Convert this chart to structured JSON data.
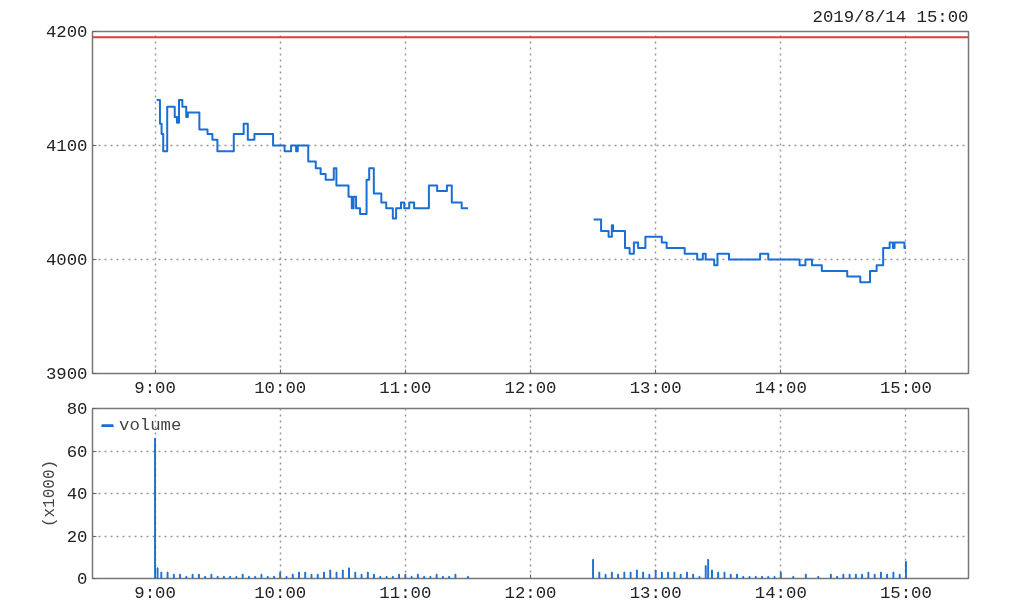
{
  "chart_data": [
    {
      "type": "step",
      "title": "2019/8/14 15:00",
      "xlim": [
        8.5,
        15.5
      ],
      "xticks": [
        {
          "value": 9,
          "label": "9:00"
        },
        {
          "value": 10,
          "label": "10:00"
        },
        {
          "value": 11,
          "label": "11:00"
        },
        {
          "value": 12,
          "label": "12:00"
        },
        {
          "value": 13,
          "label": "13:00"
        },
        {
          "value": 14,
          "label": "14:00"
        },
        {
          "value": 15,
          "label": "15:00"
        }
      ],
      "ylim": [
        3900,
        4200
      ],
      "yticks": [
        3900,
        4000,
        4100,
        4200
      ],
      "grid": true,
      "legend": false,
      "ref_lines": [
        {
          "axis": "y",
          "value": 4195,
          "color": "#e03c3c"
        }
      ],
      "series": [
        {
          "color": "#1a6fd4",
          "x": [
            9.013,
            9.039,
            9.052,
            9.065,
            9.097,
            9.157,
            9.175,
            9.191,
            9.218,
            9.249,
            9.262,
            9.354,
            9.419,
            9.458,
            9.498,
            9.629,
            9.708,
            9.741,
            9.794,
            9.943,
            10.035,
            10.087,
            10.127,
            10.14,
            10.224,
            10.284,
            10.323,
            10.363,
            10.428,
            10.449,
            10.546,
            10.572,
            10.586,
            10.606,
            10.638,
            10.69,
            10.711,
            10.748,
            10.808,
            10.847,
            10.9,
            10.926,
            10.965,
            10.991,
            11.031,
            11.07,
            11.188,
            11.254,
            11.332,
            11.371,
            11.45,
            11.501,
            12.0,
            12.504,
            12.564,
            12.624,
            12.65,
            12.66,
            12.755,
            12.792,
            12.826,
            12.86,
            12.918,
            13.049,
            13.088,
            13.232,
            13.332,
            13.377,
            13.4,
            13.468,
            13.494,
            13.586,
            13.835,
            13.9,
            14.15,
            14.197,
            14.249,
            14.328,
            14.531,
            14.635,
            14.713,
            14.766,
            14.818,
            14.87,
            14.896,
            14.909,
            14.988,
            15.0
          ],
          "values": [
            4140,
            4119,
            4110,
            4095,
            4134,
            4125,
            4120,
            4140,
            4134,
            4125,
            4129,
            4114,
            4110,
            4105,
            4095,
            4110,
            4119,
            4105,
            4110,
            4100,
            4095,
            4100,
            4095,
            4100,
            4086,
            4080,
            4075,
            4070,
            4080,
            4065,
            4055,
            4045,
            4055,
            4045,
            4040,
            4070,
            4080,
            4058,
            4050,
            4045,
            4036,
            4045,
            4050,
            4045,
            4050,
            4045,
            4065,
            4060,
            4065,
            4050,
            4045,
            4045,
            null,
            4035,
            4025,
            4020,
            4030,
            4025,
            4010,
            4005,
            4015,
            4010,
            4020,
            4015,
            4010,
            4005,
            4000,
            4005,
            4000,
            3995,
            4005,
            4000,
            4005,
            4000,
            3995,
            4000,
            3995,
            3990,
            3985,
            3980,
            3990,
            3995,
            4010,
            4015,
            4010,
            4015,
            4010,
            4010
          ]
        }
      ]
    },
    {
      "type": "bar",
      "ylabel": "(x1000)",
      "xlim": [
        8.5,
        15.5
      ],
      "xticks": [
        {
          "value": 9,
          "label": "9:00"
        },
        {
          "value": 10,
          "label": "10:00"
        },
        {
          "value": 11,
          "label": "11:00"
        },
        {
          "value": 12,
          "label": "12:00"
        },
        {
          "value": 13,
          "label": "13:00"
        },
        {
          "value": 14,
          "label": "14:00"
        },
        {
          "value": 15,
          "label": "15:00"
        }
      ],
      "ylim": [
        0,
        80
      ],
      "yticks": [
        0,
        20,
        40,
        60,
        80
      ],
      "grid": true,
      "legend": "top left",
      "series": [
        {
          "name": "volume",
          "color": "#1a6fd4",
          "x": [
            9.0,
            9.02,
            9.05,
            9.1,
            9.15,
            9.2,
            9.25,
            9.3,
            9.35,
            9.4,
            9.45,
            9.5,
            9.55,
            9.6,
            9.65,
            9.7,
            9.75,
            9.8,
            9.85,
            9.9,
            9.95,
            10.0,
            10.05,
            10.1,
            10.15,
            10.2,
            10.25,
            10.3,
            10.35,
            10.4,
            10.45,
            10.5,
            10.55,
            10.6,
            10.65,
            10.7,
            10.75,
            10.8,
            10.85,
            10.9,
            10.95,
            11.0,
            11.05,
            11.1,
            11.15,
            11.2,
            11.25,
            11.3,
            11.35,
            11.4,
            11.5,
            12.5,
            12.55,
            12.6,
            12.65,
            12.7,
            12.75,
            12.8,
            12.85,
            12.9,
            12.95,
            13.0,
            13.05,
            13.1,
            13.15,
            13.2,
            13.25,
            13.3,
            13.35,
            13.4,
            13.42,
            13.45,
            13.5,
            13.55,
            13.6,
            13.65,
            13.7,
            13.75,
            13.8,
            13.85,
            13.9,
            13.95,
            14.0,
            14.1,
            14.2,
            14.3,
            14.4,
            14.45,
            14.5,
            14.55,
            14.6,
            14.65,
            14.7,
            14.75,
            14.8,
            14.85,
            14.9,
            14.95,
            15.0
          ],
          "values": [
            66,
            5,
            3,
            3,
            2,
            2,
            1,
            2,
            2,
            1,
            2,
            1,
            1,
            1,
            1,
            2,
            1,
            1,
            2,
            1,
            1,
            3,
            1,
            2,
            3,
            3,
            2,
            2,
            3,
            4,
            3,
            4,
            5,
            3,
            2,
            3,
            2,
            1,
            1,
            1,
            2,
            2,
            1,
            2,
            1,
            1,
            2,
            1,
            1,
            2,
            1,
            9,
            3,
            2,
            3,
            2,
            3,
            3,
            4,
            3,
            2,
            4,
            3,
            3,
            3,
            2,
            3,
            2,
            1,
            6,
            9,
            4,
            3,
            3,
            2,
            2,
            1,
            1,
            1,
            1,
            1,
            1,
            3,
            1,
            2,
            1,
            2,
            1,
            2,
            2,
            2,
            2,
            3,
            2,
            3,
            2,
            3,
            2,
            8
          ]
        }
      ]
    }
  ]
}
